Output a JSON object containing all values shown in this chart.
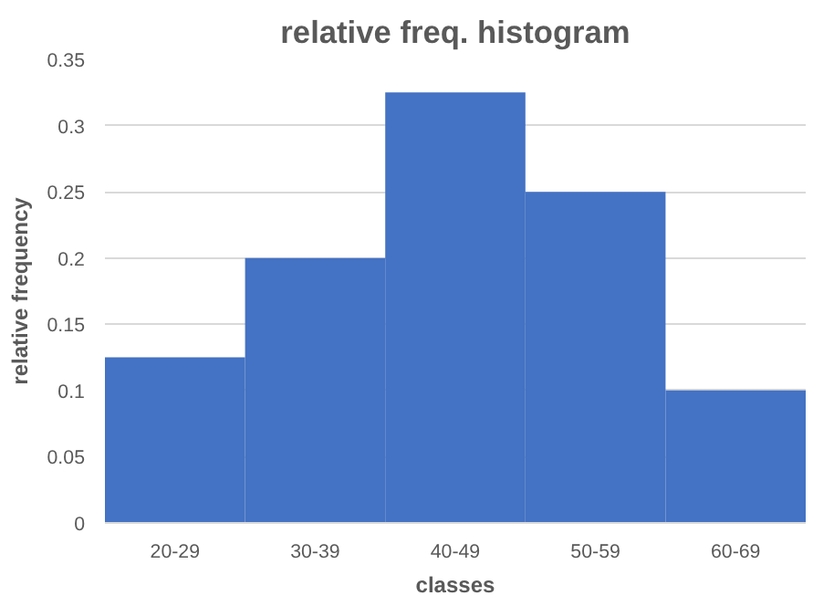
{
  "chart_data": {
    "type": "bar",
    "title": "relative freq. histogram",
    "xlabel": "classes",
    "ylabel": "relative frequency",
    "categories": [
      "20-29",
      "30-39",
      "40-49",
      "50-59",
      "60-69"
    ],
    "values": [
      0.125,
      0.2,
      0.325,
      0.25,
      0.1
    ],
    "color": "#4472c4",
    "ylim": [
      0,
      0.35
    ],
    "yticks": [
      0,
      0.05,
      0.1,
      0.15,
      0.2,
      0.25,
      0.3,
      0.35
    ],
    "grid": "y"
  }
}
